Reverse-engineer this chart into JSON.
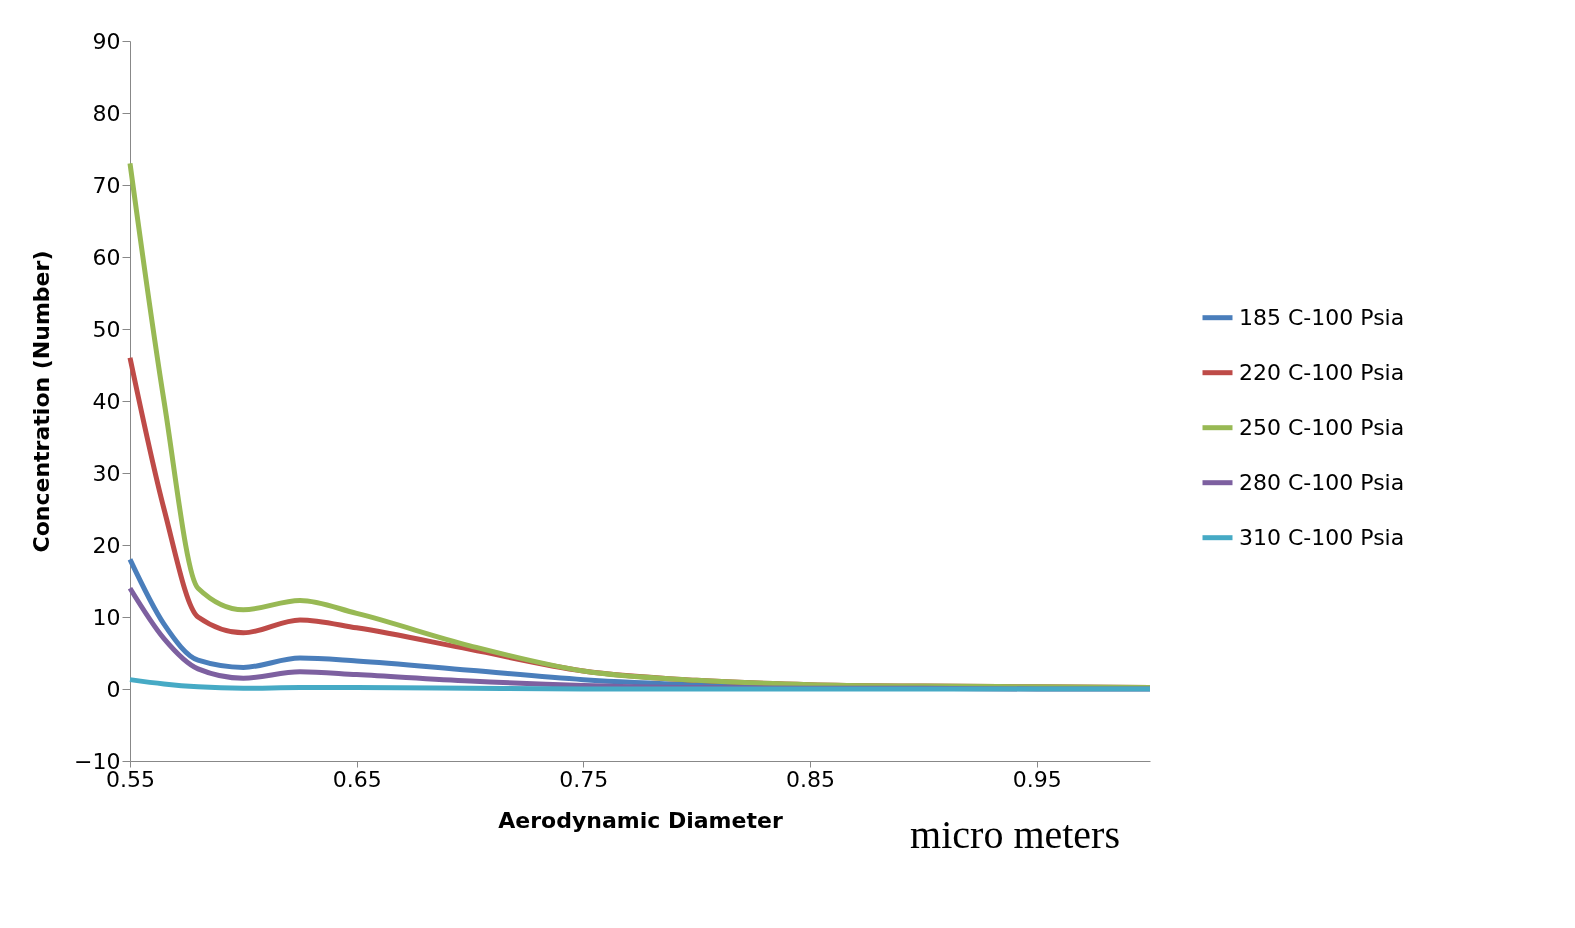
{
  "chart_data": {
    "type": "line",
    "xlabel": "Aerodynamic Diameter",
    "ylabel": "Concentration (Number)",
    "annotations": [
      "micro meters"
    ],
    "x": [
      0.55,
      0.565,
      0.58,
      0.6,
      0.625,
      0.65,
      0.7,
      0.75,
      0.8,
      0.85,
      0.9,
      0.95,
      1.0
    ],
    "series": [
      {
        "name": "185 C-100 Psia",
        "color": "#4a7ebb",
        "values": [
          18,
          9,
          4,
          3,
          4.3,
          3.9,
          2.6,
          1.3,
          0.6,
          0.3,
          0.2,
          0.1,
          0.1
        ]
      },
      {
        "name": "220 C-100 Psia",
        "color": "#be4b48",
        "values": [
          46,
          25,
          10,
          7.8,
          9.6,
          8.5,
          5.5,
          2.5,
          1.2,
          0.6,
          0.4,
          0.3,
          0.2
        ]
      },
      {
        "name": "250 C-100 Psia",
        "color": "#98b954",
        "values": [
          73,
          40,
          14,
          11,
          12.3,
          10.5,
          6,
          2.5,
          1.2,
          0.6,
          0.4,
          0.3,
          0.2
        ]
      },
      {
        "name": "280 C-100 Psia",
        "color": "#7d60a0",
        "values": [
          14,
          7,
          2.8,
          1.5,
          2.4,
          2,
          1.1,
          0.5,
          0.2,
          0.1,
          0.1,
          0,
          0
        ]
      },
      {
        "name": "310 C-100 Psia",
        "color": "#46aac5",
        "values": [
          1.3,
          0.7,
          0.3,
          0.1,
          0.2,
          0.2,
          0.1,
          0,
          0,
          0,
          0,
          0,
          0
        ]
      }
    ],
    "xlim": [
      0.55,
      1.0
    ],
    "xticks": [
      0.55,
      0.65,
      0.75,
      0.85,
      0.95
    ],
    "ylim": [
      -10,
      90
    ],
    "yticks": [
      -10,
      0,
      10,
      20,
      30,
      40,
      50,
      60,
      70,
      80,
      90
    ],
    "grid": false,
    "legend": "right",
    "marker": "none",
    "line_style": "solid"
  }
}
